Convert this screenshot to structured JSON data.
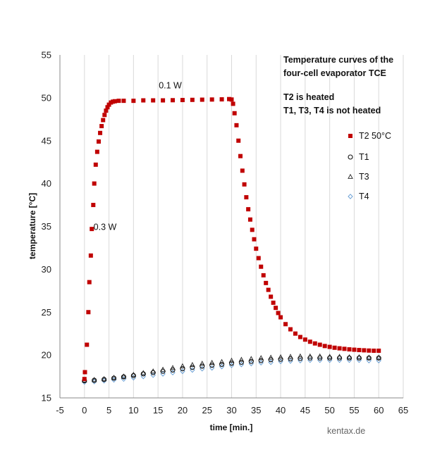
{
  "chart_data": {
    "type": "scatter",
    "title_lines": [
      "Temperature curves of the",
      "four-cell evaporator TCE"
    ],
    "note_lines": [
      "T2 is heated",
      "T1, T3, T4 is not heated"
    ],
    "xlabel": "time [min.]",
    "ylabel": "temperature [°C]",
    "xlim": [
      -5,
      65
    ],
    "ylim": [
      15,
      55
    ],
    "xticks": [
      -5,
      0,
      5,
      10,
      15,
      20,
      25,
      30,
      35,
      40,
      45,
      50,
      55,
      60,
      65
    ],
    "yticks": [
      15,
      20,
      25,
      30,
      35,
      40,
      45,
      50,
      55
    ],
    "grid": "vertical",
    "legend_position": "right",
    "annotations": [
      {
        "text": "0.1 W",
        "x": 17.5,
        "y": 51.1
      },
      {
        "text": "0.3 W",
        "x": 4.2,
        "y": 34.6
      }
    ],
    "credit": "kentax.de",
    "series": [
      {
        "name": "T2   50°C",
        "marker": "square",
        "color": "#c00000",
        "points": [
          [
            0,
            17.2
          ],
          [
            0.1,
            18.0
          ],
          [
            0.5,
            21.2
          ],
          [
            0.8,
            25.0
          ],
          [
            1.0,
            28.5
          ],
          [
            1.3,
            31.6
          ],
          [
            1.5,
            34.7
          ],
          [
            1.8,
            37.5
          ],
          [
            2.0,
            40.0
          ],
          [
            2.3,
            42.2
          ],
          [
            2.6,
            43.7
          ],
          [
            2.9,
            44.9
          ],
          [
            3.2,
            45.9
          ],
          [
            3.5,
            46.7
          ],
          [
            3.8,
            47.4
          ],
          [
            4.1,
            48.0
          ],
          [
            4.4,
            48.5
          ],
          [
            4.7,
            48.9
          ],
          [
            5.0,
            49.2
          ],
          [
            5.4,
            49.45
          ],
          [
            5.8,
            49.55
          ],
          [
            6.2,
            49.6
          ],
          [
            7.0,
            49.65
          ],
          [
            8.0,
            49.65
          ],
          [
            10.0,
            49.65
          ],
          [
            12.0,
            49.7
          ],
          [
            14.0,
            49.7
          ],
          [
            16.0,
            49.7
          ],
          [
            18.0,
            49.72
          ],
          [
            20.0,
            49.74
          ],
          [
            22.0,
            49.76
          ],
          [
            24.0,
            49.78
          ],
          [
            26.0,
            49.8
          ],
          [
            28.0,
            49.82
          ],
          [
            29.5,
            49.85
          ],
          [
            30.0,
            49.8
          ],
          [
            30.3,
            49.3
          ],
          [
            30.6,
            48.2
          ],
          [
            31.0,
            46.8
          ],
          [
            31.4,
            45.0
          ],
          [
            31.8,
            43.2
          ],
          [
            32.2,
            41.5
          ],
          [
            32.6,
            39.9
          ],
          [
            33.0,
            38.4
          ],
          [
            33.4,
            37.0
          ],
          [
            33.8,
            35.8
          ],
          [
            34.2,
            34.6
          ],
          [
            34.6,
            33.5
          ],
          [
            35.0,
            32.4
          ],
          [
            35.5,
            31.3
          ],
          [
            36.0,
            30.3
          ],
          [
            36.5,
            29.3
          ],
          [
            37.0,
            28.4
          ],
          [
            37.5,
            27.6
          ],
          [
            38.0,
            26.8
          ],
          [
            38.5,
            26.1
          ],
          [
            39.0,
            25.5
          ],
          [
            39.5,
            24.9
          ],
          [
            40.0,
            24.4
          ],
          [
            41.0,
            23.6
          ],
          [
            42.0,
            23.0
          ],
          [
            43.0,
            22.5
          ],
          [
            44.0,
            22.1
          ],
          [
            45.0,
            21.8
          ],
          [
            46.0,
            21.55
          ],
          [
            47.0,
            21.35
          ],
          [
            48.0,
            21.2
          ],
          [
            49.0,
            21.05
          ],
          [
            50.0,
            20.95
          ],
          [
            51.0,
            20.85
          ],
          [
            52.0,
            20.78
          ],
          [
            53.0,
            20.72
          ],
          [
            54.0,
            20.66
          ],
          [
            55.0,
            20.62
          ],
          [
            56.0,
            20.58
          ],
          [
            57.0,
            20.55
          ],
          [
            58.0,
            20.52
          ],
          [
            59.0,
            20.5
          ],
          [
            60.0,
            20.5
          ]
        ]
      },
      {
        "name": "T1",
        "marker": "circle",
        "color": "#111111",
        "points": [
          [
            0,
            17.0
          ],
          [
            2,
            17.05
          ],
          [
            4,
            17.15
          ],
          [
            6,
            17.3
          ],
          [
            8,
            17.45
          ],
          [
            10,
            17.6
          ],
          [
            12,
            17.8
          ],
          [
            14,
            17.95
          ],
          [
            16,
            18.1
          ],
          [
            18,
            18.25
          ],
          [
            20,
            18.4
          ],
          [
            22,
            18.55
          ],
          [
            24,
            18.7
          ],
          [
            26,
            18.8
          ],
          [
            28,
            18.9
          ],
          [
            30,
            19.05
          ],
          [
            32,
            19.15
          ],
          [
            34,
            19.25
          ],
          [
            36,
            19.35
          ],
          [
            38,
            19.45
          ],
          [
            40,
            19.5
          ],
          [
            42,
            19.55
          ],
          [
            44,
            19.6
          ],
          [
            46,
            19.65
          ],
          [
            48,
            19.65
          ],
          [
            50,
            19.65
          ],
          [
            52,
            19.65
          ],
          [
            54,
            19.65
          ],
          [
            56,
            19.65
          ],
          [
            58,
            19.65
          ],
          [
            60,
            19.65
          ]
        ]
      },
      {
        "name": "T3",
        "marker": "triangle",
        "color": "#333333",
        "points": [
          [
            0,
            17.05
          ],
          [
            2,
            17.1
          ],
          [
            4,
            17.2
          ],
          [
            6,
            17.35
          ],
          [
            8,
            17.5
          ],
          [
            10,
            17.7
          ],
          [
            12,
            17.9
          ],
          [
            14,
            18.1
          ],
          [
            16,
            18.3
          ],
          [
            18,
            18.5
          ],
          [
            20,
            18.7
          ],
          [
            22,
            18.85
          ],
          [
            24,
            19.0
          ],
          [
            26,
            19.1
          ],
          [
            28,
            19.2
          ],
          [
            30,
            19.35
          ],
          [
            32,
            19.45
          ],
          [
            34,
            19.55
          ],
          [
            36,
            19.65
          ],
          [
            38,
            19.7
          ],
          [
            40,
            19.75
          ],
          [
            42,
            19.8
          ],
          [
            44,
            19.85
          ],
          [
            46,
            19.85
          ],
          [
            48,
            19.85
          ],
          [
            50,
            19.8
          ],
          [
            52,
            19.8
          ],
          [
            54,
            19.75
          ],
          [
            56,
            19.75
          ],
          [
            58,
            19.7
          ],
          [
            60,
            19.7
          ]
        ]
      },
      {
        "name": "T4",
        "marker": "diamond",
        "color": "#6a9fd4",
        "points": [
          [
            0,
            16.85
          ],
          [
            2,
            16.9
          ],
          [
            4,
            17.0
          ],
          [
            6,
            17.1
          ],
          [
            8,
            17.2
          ],
          [
            10,
            17.35
          ],
          [
            12,
            17.5
          ],
          [
            14,
            17.65
          ],
          [
            16,
            17.8
          ],
          [
            18,
            17.95
          ],
          [
            20,
            18.1
          ],
          [
            22,
            18.25
          ],
          [
            24,
            18.4
          ],
          [
            26,
            18.5
          ],
          [
            28,
            18.65
          ],
          [
            30,
            18.8
          ],
          [
            32,
            18.9
          ],
          [
            34,
            19.0
          ],
          [
            36,
            19.1
          ],
          [
            38,
            19.15
          ],
          [
            40,
            19.25
          ],
          [
            42,
            19.3
          ],
          [
            44,
            19.35
          ],
          [
            46,
            19.4
          ],
          [
            48,
            19.4
          ],
          [
            50,
            19.4
          ],
          [
            52,
            19.4
          ],
          [
            54,
            19.4
          ],
          [
            56,
            19.4
          ],
          [
            58,
            19.35
          ],
          [
            60,
            19.35
          ]
        ]
      }
    ]
  }
}
